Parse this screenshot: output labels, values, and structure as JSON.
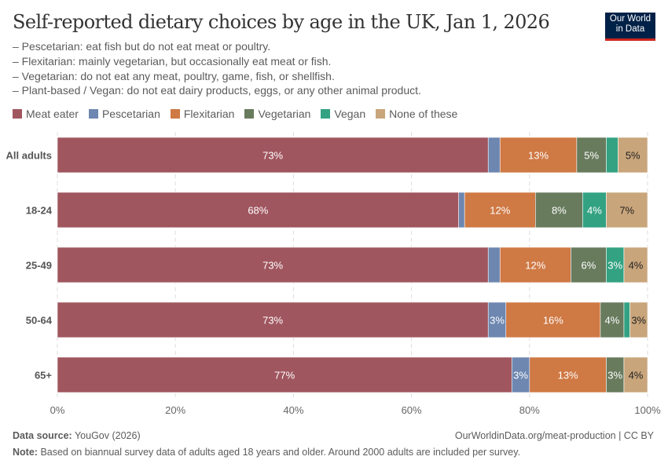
{
  "header": {
    "title": "Self-reported dietary choices by age in the UK, Jan 1, 2026",
    "notes": [
      "– Pescetarian: eat fish but do not eat meat or poultry.",
      "– Flexitarian: mainly vegetarian, but occasionally eat meat or fish.",
      "– Vegetarian: do not eat any meat, poultry, game, fish, or shellfish.",
      "– Plant-based / Vegan: do not eat dairy products, eggs, or any other animal product."
    ],
    "logo": "Our World in Data"
  },
  "chart_data": {
    "type": "bar",
    "orientation": "horizontal",
    "stacked": true,
    "categories": [
      "All adults",
      "18-24",
      "25-49",
      "50-64",
      "65+"
    ],
    "series": [
      {
        "name": "Meat eater",
        "color": "#a0565f",
        "values": [
          73,
          68,
          73,
          73,
          77
        ]
      },
      {
        "name": "Pescetarian",
        "color": "#6d87b0",
        "values": [
          2,
          1,
          2,
          3,
          3
        ]
      },
      {
        "name": "Flexitarian",
        "color": "#cf7944",
        "values": [
          13,
          12,
          12,
          16,
          13
        ]
      },
      {
        "name": "Vegetarian",
        "color": "#687b5d",
        "values": [
          5,
          8,
          6,
          4,
          3
        ]
      },
      {
        "name": "Vegan",
        "color": "#33a282",
        "values": [
          2,
          4,
          3,
          1,
          0
        ]
      },
      {
        "name": "None of these",
        "color": "#c9a57b",
        "values": [
          5,
          7,
          4,
          3,
          4
        ]
      }
    ],
    "xlim": [
      0,
      100
    ],
    "xticks": [
      "0%",
      "20%",
      "40%",
      "60%",
      "80%",
      "100%"
    ],
    "grid": "vertical dashed",
    "legend": "top-left"
  },
  "footer": {
    "source_label": "Data source:",
    "source": "YouGov (2026)",
    "url": "OurWorldinData.org/meat-production | CC BY",
    "note_label": "Note:",
    "note": "Based on biannual survey data of adults aged 18 years and older. Around 2000 adults are included per survey."
  }
}
